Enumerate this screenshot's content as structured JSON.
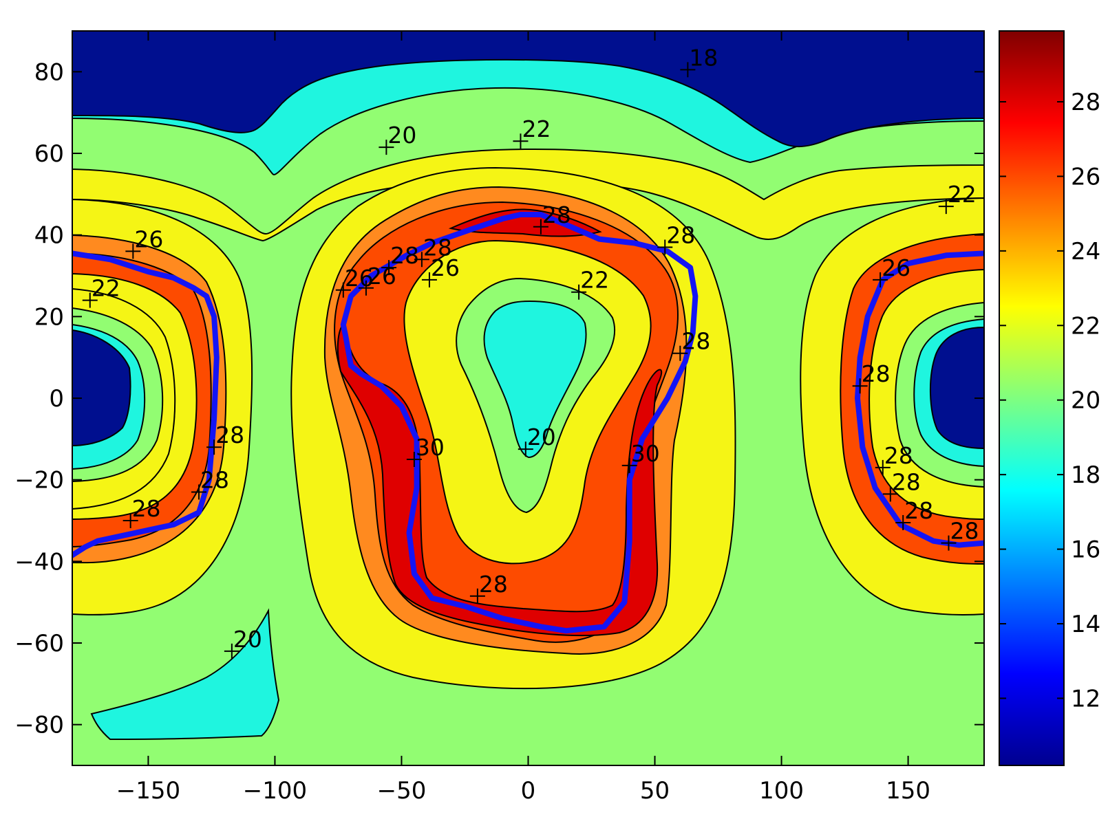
{
  "chart_data": {
    "type": "contour",
    "title": "",
    "xlabel": "",
    "ylabel": "",
    "xlim": [
      -180,
      180
    ],
    "ylim": [
      -90,
      90
    ],
    "x_ticks": [
      -150,
      -100,
      -50,
      0,
      50,
      100,
      150
    ],
    "y_ticks": [
      80,
      60,
      40,
      20,
      0,
      -20,
      -40,
      -60,
      -80
    ],
    "x_tick_labels": [
      "−150",
      "−100",
      "−50",
      "0",
      "50",
      "100",
      "150"
    ],
    "y_tick_labels": [
      "80",
      "60",
      "40",
      "20",
      "0",
      "−20",
      "−40",
      "−60",
      "−80"
    ],
    "contour_levels": [
      18,
      20,
      22,
      24,
      26,
      28,
      30
    ],
    "level_colors": {
      "below_18": "#000f8f",
      "18_20": "#1ff5df",
      "20_22": "#92fd72",
      "22_24": "#f5f515",
      "24_26": "#ff8a1f",
      "26_28": "#fd4b00",
      "28_30": "#df0000",
      "above_30": "#b40000"
    },
    "contour_labels": [
      {
        "text": "18",
        "x": 63,
        "y": 80.5
      },
      {
        "text": "20",
        "x": -56,
        "y": 61.5
      },
      {
        "text": "22",
        "x": -3,
        "y": 63
      },
      {
        "text": "22",
        "x": 165,
        "y": 47
      },
      {
        "text": "26",
        "x": -156,
        "y": 36
      },
      {
        "text": "22",
        "x": -173,
        "y": 24
      },
      {
        "text": "28",
        "x": 5,
        "y": 42
      },
      {
        "text": "28",
        "x": 54,
        "y": 37
      },
      {
        "text": "28",
        "x": -42,
        "y": 34
      },
      {
        "text": "28",
        "x": -55,
        "y": 32
      },
      {
        "text": "26",
        "x": -39,
        "y": 29
      },
      {
        "text": "26",
        "x": -73,
        "y": 26.5
      },
      {
        "text": "26",
        "x": -64,
        "y": 27
      },
      {
        "text": "22",
        "x": 20,
        "y": 26
      },
      {
        "text": "26",
        "x": 139,
        "y": 29
      },
      {
        "text": "28",
        "x": 60,
        "y": 11
      },
      {
        "text": "28",
        "x": 131,
        "y": 3
      },
      {
        "text": "28",
        "x": -124,
        "y": -12
      },
      {
        "text": "20",
        "x": -1,
        "y": -12.5
      },
      {
        "text": "30",
        "x": -45,
        "y": -15
      },
      {
        "text": "30",
        "x": 40,
        "y": -16.5
      },
      {
        "text": "28",
        "x": 140,
        "y": -17
      },
      {
        "text": "28",
        "x": -130,
        "y": -23
      },
      {
        "text": "28",
        "x": 143,
        "y": -23.5
      },
      {
        "text": "28",
        "x": -157,
        "y": -30
      },
      {
        "text": "28",
        "x": 148,
        "y": -30.5
      },
      {
        "text": "28",
        "x": 166,
        "y": -35.5
      },
      {
        "text": "28",
        "x": -20,
        "y": -48.5
      },
      {
        "text": "20",
        "x": -117,
        "y": -62
      }
    ],
    "trace_line": {
      "color": "#1414f5",
      "segments": [
        [
          [
            -180,
            35.5
          ],
          [
            -165,
            34
          ],
          [
            -150,
            31
          ],
          [
            -140,
            29.5
          ],
          [
            -132,
            27
          ],
          [
            -127,
            25
          ],
          [
            -124,
            20
          ],
          [
            -123,
            10
          ],
          [
            -124,
            -5
          ],
          [
            -126,
            -20
          ],
          [
            -130,
            -28
          ],
          [
            -140,
            -31
          ],
          [
            -155,
            -33
          ],
          [
            -170,
            -35
          ],
          [
            -175,
            -36.5
          ],
          [
            -180,
            -38.5
          ]
        ],
        [
          [
            -72,
            15
          ],
          [
            -73,
            18
          ],
          [
            -70,
            25
          ],
          [
            -62,
            30
          ],
          [
            -48,
            35
          ],
          [
            -38,
            38
          ],
          [
            -22,
            41.5
          ],
          [
            -10,
            44
          ],
          [
            -3,
            45
          ],
          [
            5,
            45
          ],
          [
            15,
            42.5
          ],
          [
            28,
            39
          ],
          [
            42,
            38
          ],
          [
            55,
            36
          ],
          [
            64,
            32
          ],
          [
            66,
            25
          ],
          [
            65,
            16
          ],
          [
            62,
            9
          ],
          [
            55,
            0
          ],
          [
            45,
            -10
          ],
          [
            40,
            -20
          ],
          [
            40,
            -35
          ],
          [
            38,
            -50
          ],
          [
            30,
            -56
          ],
          [
            15,
            -57
          ],
          [
            5,
            -56
          ],
          [
            -10,
            -54
          ],
          [
            -25,
            -51
          ],
          [
            -38,
            -49
          ],
          [
            -45,
            -43
          ],
          [
            -47,
            -33
          ],
          [
            -44,
            -22
          ],
          [
            -44,
            -10
          ],
          [
            -50,
            -2
          ],
          [
            -58,
            3
          ],
          [
            -66,
            6
          ],
          [
            -70,
            8
          ],
          [
            -72,
            15
          ]
        ],
        [
          [
            180,
            35.5
          ],
          [
            165,
            35
          ],
          [
            150,
            33
          ],
          [
            140,
            29
          ],
          [
            134,
            20
          ],
          [
            131,
            10
          ],
          [
            130,
            0
          ],
          [
            132,
            -12
          ],
          [
            137,
            -22
          ],
          [
            147,
            -31
          ],
          [
            160,
            -35
          ],
          [
            170,
            -36
          ],
          [
            180,
            -35.5
          ]
        ]
      ]
    }
  }
}
